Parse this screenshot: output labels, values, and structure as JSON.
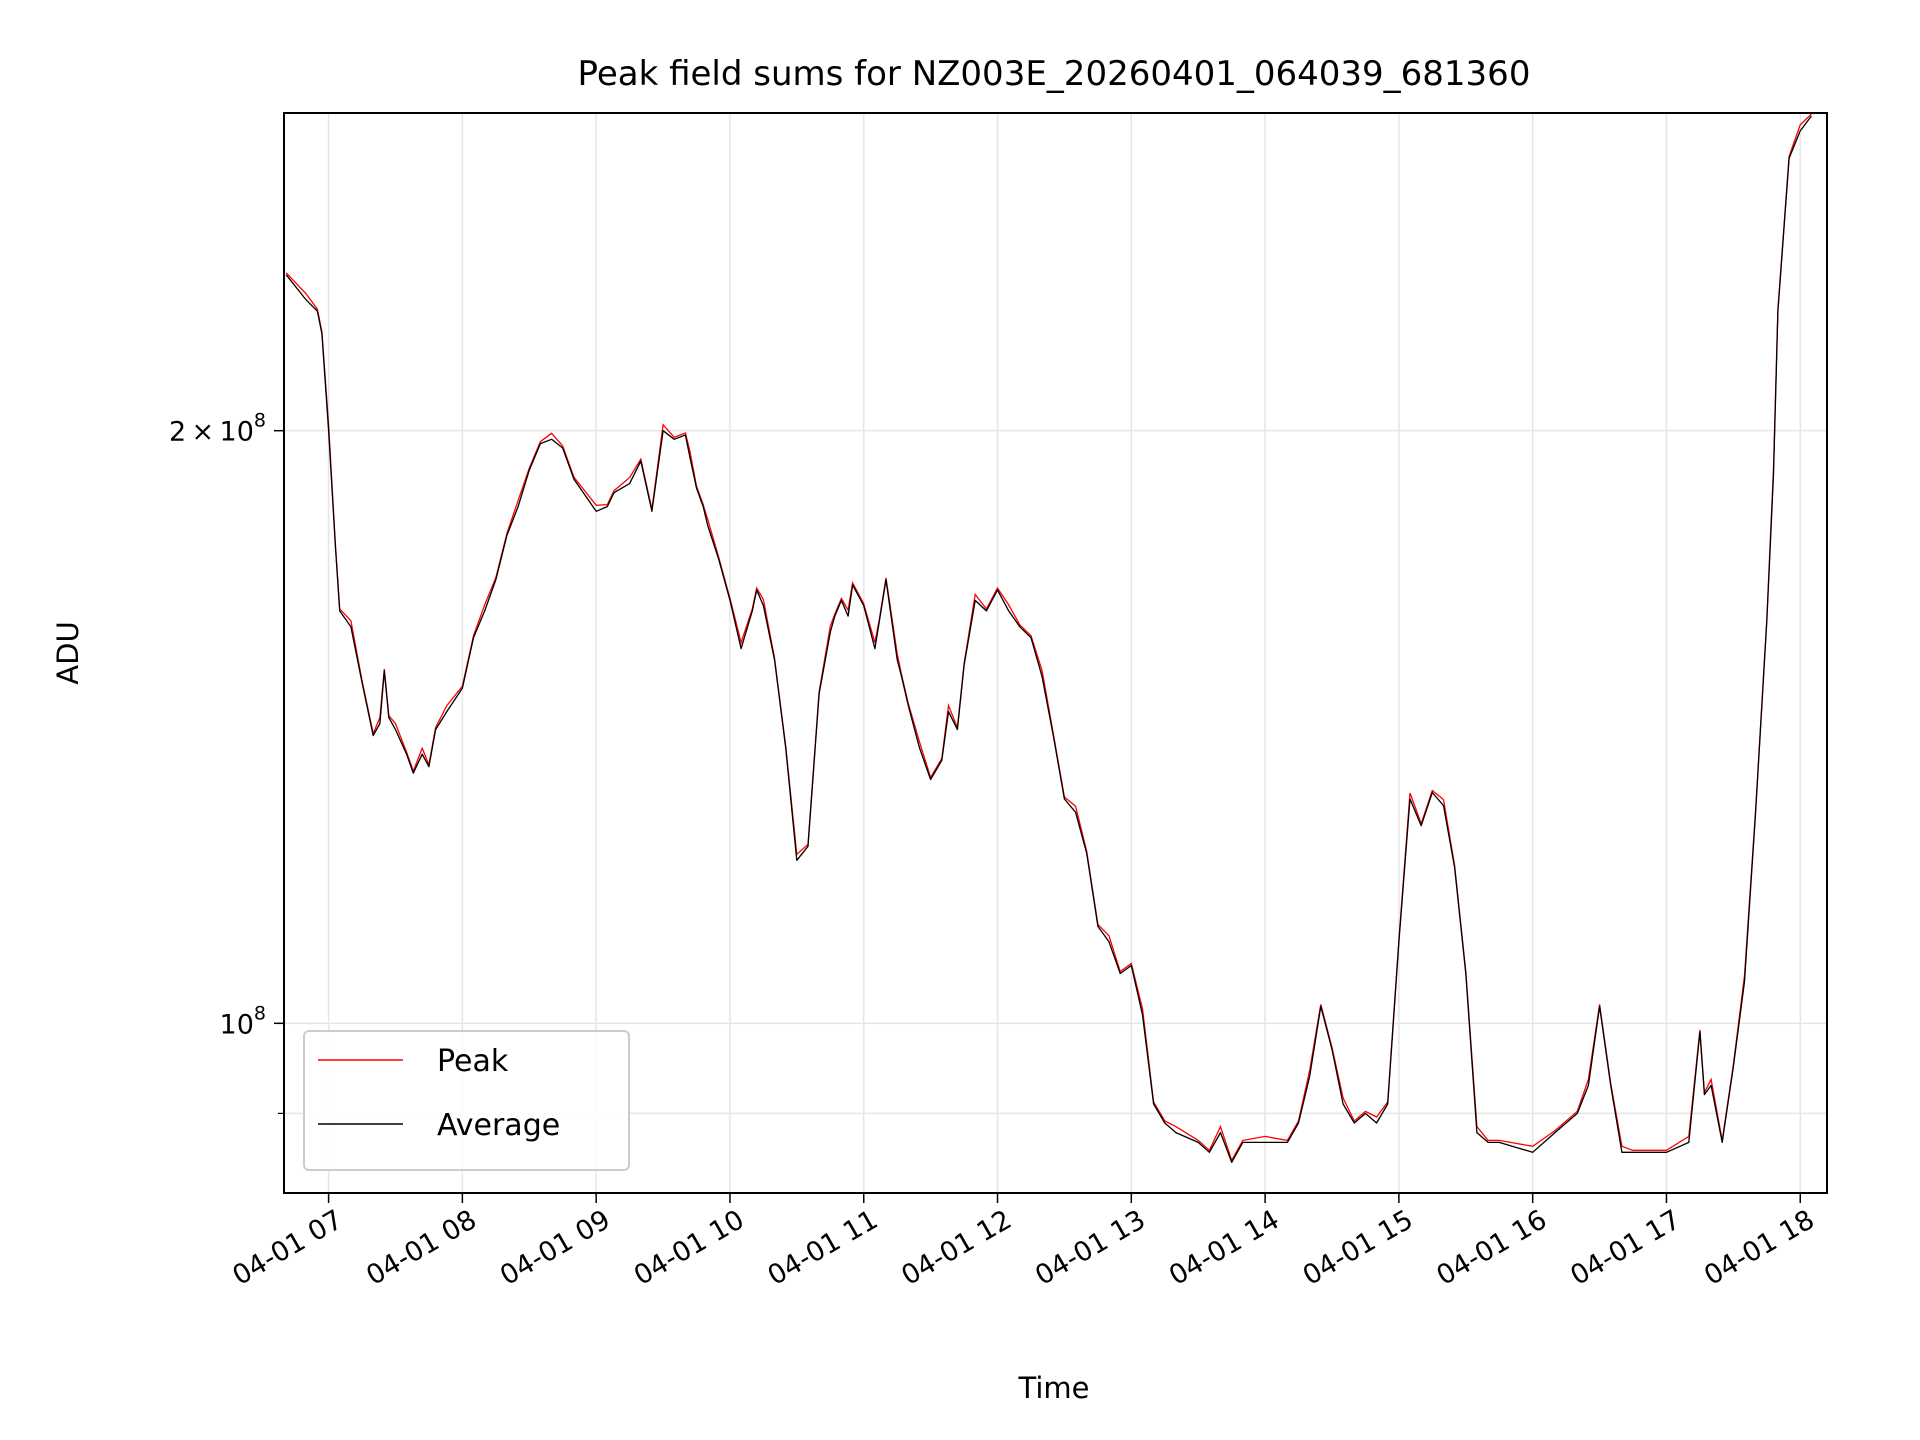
{
  "chart_data": {
    "type": "line",
    "title": "Peak field sums for NZ003E_20260401_064039_681360",
    "xlabel": "Time",
    "ylabel": "ADU",
    "yscale": "log",
    "x_range": [
      "04-01 06:40",
      "04-01 18:12"
    ],
    "ylim": [
      82000000,
      290000000
    ],
    "x_ticks": [
      "04-01 07",
      "04-01 08",
      "04-01 09",
      "04-01 10",
      "04-01 11",
      "04-01 12",
      "04-01 13",
      "04-01 14",
      "04-01 15",
      "04-01 16",
      "04-01 17",
      "04-01 18"
    ],
    "y_ticks": [
      {
        "value": 100000000,
        "mantissa": "",
        "exponent": "8"
      },
      {
        "value": 200000000,
        "mantissa": "2",
        "exponent": "8"
      }
    ],
    "grid": true,
    "legend_position": "lower-left",
    "series": [
      {
        "name": "Peak",
        "color": "#ff0000"
      },
      {
        "name": "Average",
        "color": "#000000"
      }
    ],
    "times": [
      "04-01 06:41",
      "04-01 06:50",
      "04-01 06:55",
      "04-01 06:57",
      "04-01 07:00",
      "04-01 07:03",
      "04-01 07:05",
      "04-01 07:10",
      "04-01 07:15",
      "04-01 07:20",
      "04-01 07:23",
      "04-01 07:25",
      "04-01 07:27",
      "04-01 07:30",
      "04-01 07:35",
      "04-01 07:38",
      "04-01 07:42",
      "04-01 07:45",
      "04-01 07:48",
      "04-01 07:53",
      "04-01 08:00",
      "04-01 08:05",
      "04-01 08:10",
      "04-01 08:15",
      "04-01 08:20",
      "04-01 08:25",
      "04-01 08:30",
      "04-01 08:35",
      "04-01 08:40",
      "04-01 08:45",
      "04-01 08:50",
      "04-01 09:00",
      "04-01 09:05",
      "04-01 09:08",
      "04-01 09:15",
      "04-01 09:20",
      "04-01 09:25",
      "04-01 09:30",
      "04-01 09:35",
      "04-01 09:40",
      "04-01 09:42",
      "04-01 09:45",
      "04-01 09:48",
      "04-01 09:50",
      "04-01 09:55",
      "04-01 10:00",
      "04-01 10:05",
      "04-01 10:10",
      "04-01 10:12",
      "04-01 10:15",
      "04-01 10:20",
      "04-01 10:25",
      "04-01 10:30",
      "04-01 10:35",
      "04-01 10:40",
      "04-01 10:45",
      "04-01 10:47",
      "04-01 10:50",
      "04-01 10:53",
      "04-01 10:55",
      "04-01 11:00",
      "04-01 11:05",
      "04-01 11:07",
      "04-01 11:10",
      "04-01 11:15",
      "04-01 11:17",
      "04-01 11:20",
      "04-01 11:25",
      "04-01 11:30",
      "04-01 11:35",
      "04-01 11:38",
      "04-01 11:42",
      "04-01 11:45",
      "04-01 11:50",
      "04-01 11:55",
      "04-01 12:00",
      "04-01 12:05",
      "04-01 12:10",
      "04-01 12:15",
      "04-01 12:20",
      "04-01 12:25",
      "04-01 12:30",
      "04-01 12:35",
      "04-01 12:40",
      "04-01 12:45",
      "04-01 12:50",
      "04-01 12:55",
      "04-01 13:00",
      "04-01 13:05",
      "04-01 13:10",
      "04-01 13:15",
      "04-01 13:20",
      "04-01 13:30",
      "04-01 13:35",
      "04-01 13:40",
      "04-01 13:45",
      "04-01 13:50",
      "04-01 14:00",
      "04-01 14:10",
      "04-01 14:15",
      "04-01 14:20",
      "04-01 14:25",
      "04-01 14:30",
      "04-01 14:35",
      "04-01 14:40",
      "04-01 14:45",
      "04-01 14:50",
      "04-01 14:55",
      "04-01 15:00",
      "04-01 15:05",
      "04-01 15:10",
      "04-01 15:15",
      "04-01 15:20",
      "04-01 15:25",
      "04-01 15:30",
      "04-01 15:35",
      "04-01 15:40",
      "04-01 15:45",
      "04-01 16:00",
      "04-01 16:10",
      "04-01 16:20",
      "04-01 16:25",
      "04-01 16:30",
      "04-01 16:35",
      "04-01 16:40",
      "04-01 16:45",
      "04-01 17:00",
      "04-01 17:10",
      "04-01 17:15",
      "04-01 17:17",
      "04-01 17:20",
      "04-01 17:25",
      "04-01 17:30",
      "04-01 17:35",
      "04-01 17:40",
      "04-01 17:45",
      "04-01 17:48",
      "04-01 17:50",
      "04-01 17:55",
      "04-01 18:00",
      "04-01 18:05"
    ],
    "values": [
      240000000,
      233000000,
      230000000,
      224000000,
      200000000,
      175000000,
      162000000,
      159000000,
      149000000,
      140000000,
      142000000,
      151000000,
      143000000,
      141000000,
      137000000,
      134000000,
      137000000,
      135000000,
      141000000,
      144000000,
      148000000,
      157000000,
      162000000,
      168000000,
      177000000,
      183000000,
      191000000,
      197000000,
      198000000,
      196000000,
      189000000,
      182000000,
      183000000,
      186000000,
      188000000,
      193000000,
      182000000,
      200000000,
      198000000,
      199000000,
      194000000,
      187000000,
      183000000,
      179000000,
      172000000,
      164000000,
      155000000,
      162000000,
      166000000,
      163000000,
      153000000,
      138000000,
      121000000,
      123000000,
      147000000,
      158000000,
      161000000,
      164000000,
      161000000,
      167000000,
      163000000,
      155000000,
      160000000,
      168000000,
      153000000,
      150000000,
      145000000,
      138000000,
      133000000,
      136000000,
      144000000,
      141000000,
      152000000,
      164000000,
      162000000,
      166000000,
      162000000,
      159000000,
      157000000,
      150000000,
      140000000,
      130000000,
      128000000,
      122000000,
      112000000,
      110000000,
      106000000,
      107000000,
      101000000,
      91000000,
      89000000,
      88000000,
      87000000,
      86000000,
      88000000,
      85000000,
      87000000,
      87000000,
      87000000,
      89000000,
      94000000,
      102000000,
      97000000,
      91000000,
      89000000,
      90000000,
      89000000,
      91000000,
      110000000,
      130000000,
      126000000,
      131000000,
      129000000,
      120000000,
      106000000,
      88000000,
      87000000,
      87000000,
      86000000,
      88000000,
      90000000,
      93000000,
      102000000,
      93000000,
      86000000,
      86000000,
      86000000,
      87000000,
      99000000,
      92000000,
      93000000,
      87000000,
      95000000,
      105000000,
      128000000,
      160000000,
      190000000,
      230000000,
      275000000,
      284000000,
      289000000
    ]
  }
}
